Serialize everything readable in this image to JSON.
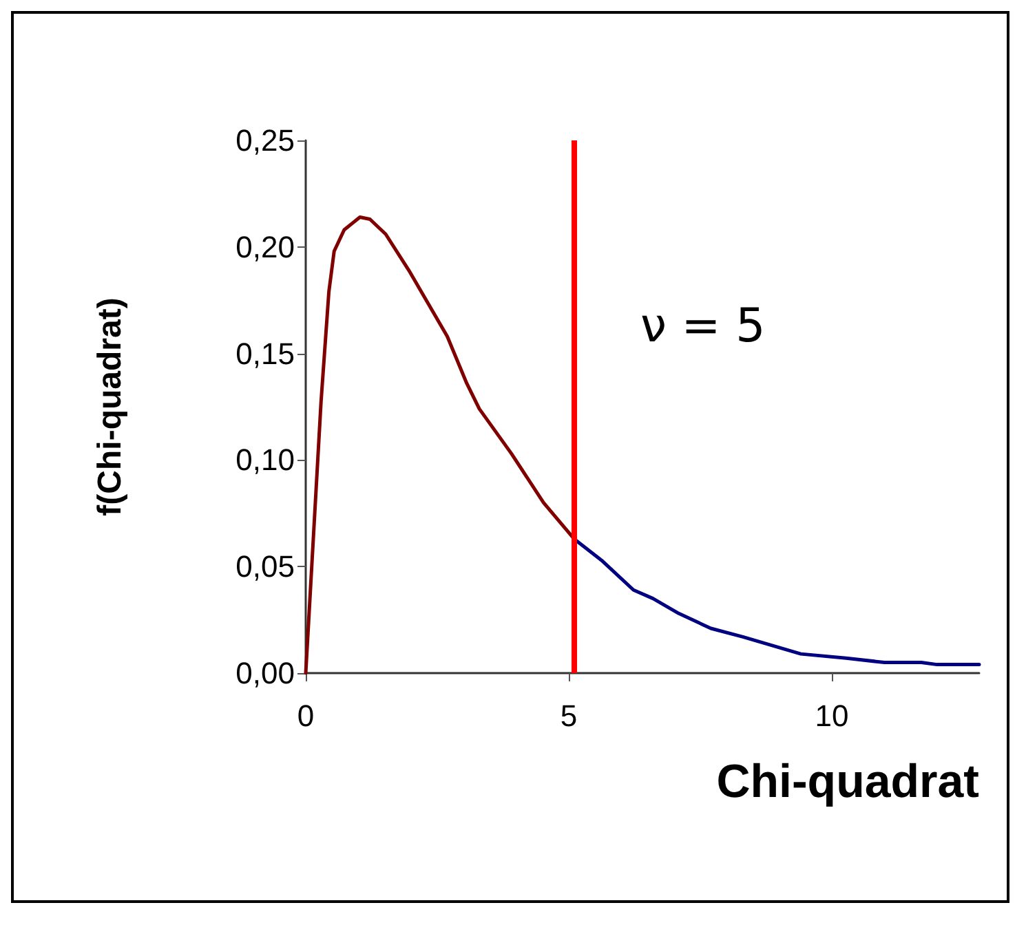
{
  "chart_data": {
    "type": "line",
    "xlabel": "Chi-quadrat",
    "ylabel": "f(Chi-quadrat)",
    "annotations": [
      "ν = 5"
    ],
    "series": [
      {
        "color": "#800000",
        "x": [
          0,
          0.29,
          0.44,
          0.54,
          0.73,
          1.03,
          1.22,
          1.52,
          1.96,
          2.69,
          3.06,
          3.3,
          3.91,
          4.52,
          5.1
        ],
        "values": [
          0,
          0.127,
          0.179,
          0.198,
          0.208,
          0.214,
          0.213,
          0.206,
          0.189,
          0.158,
          0.136,
          0.124,
          0.103,
          0.08,
          0.063
        ]
      },
      {
        "color": "#000080",
        "x": [
          5.1,
          5.62,
          6.23,
          6.6,
          7.09,
          7.7,
          8.31,
          9.41,
          10.27,
          11.0,
          11.7,
          12.0,
          12.8
        ],
        "values": [
          0.063,
          0.053,
          0.039,
          0.035,
          0.028,
          0.021,
          0.017,
          0.009,
          0.007,
          0.005,
          0.005,
          0.004,
          0.004
        ]
      }
    ],
    "xlim": [
      0,
      12.8
    ],
    "xticks": [
      0,
      5,
      10
    ],
    "ylim": [
      0,
      0.25
    ],
    "yticks": [
      {
        "value": 0,
        "label": "0,00"
      },
      {
        "value": 0.05,
        "label": "0,05"
      },
      {
        "value": 0.1,
        "label": "0,10"
      },
      {
        "value": 0.15,
        "label": "0,15"
      },
      {
        "value": 0.2,
        "label": "0,20"
      },
      {
        "value": 0.25,
        "label": "0,25"
      }
    ],
    "ref_lines": [
      {
        "axis": "x",
        "value": 5.1,
        "color": "#ff0000"
      }
    ],
    "marker": "none",
    "line_style": "solid"
  }
}
